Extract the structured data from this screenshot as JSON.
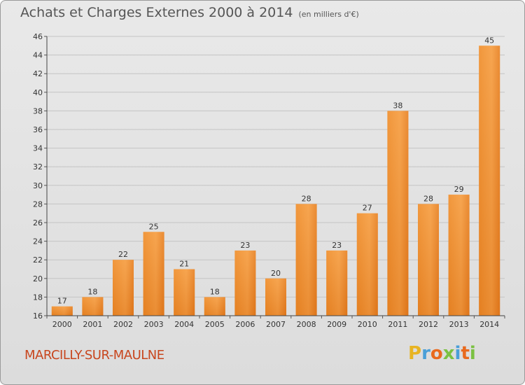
{
  "page": {
    "title": "Achats et Charges Externes 2000 à 2014",
    "unit_note": "(en milliers d'€)",
    "commune": "MARCILLY-SUR-MAULNE",
    "logo": {
      "letters": [
        "P",
        "r",
        "o",
        "x",
        "i",
        "t",
        "i"
      ],
      "colors": [
        "#e8b422",
        "#4a9fd8",
        "#e96a1e",
        "#7bc142",
        "#4a9fd8",
        "#e96a1e",
        "#7bc142"
      ]
    }
  },
  "chart_data": {
    "type": "bar",
    "title": "Achats et Charges Externes 2000 à 2014",
    "subtitle": "(en milliers d'€)",
    "xlabel": "",
    "ylabel": "",
    "categories": [
      "2000",
      "2001",
      "2002",
      "2003",
      "2004",
      "2005",
      "2006",
      "2007",
      "2008",
      "2009",
      "2010",
      "2011",
      "2012",
      "2013",
      "2014"
    ],
    "values": [
      17,
      18,
      22,
      25,
      21,
      18,
      23,
      20,
      28,
      23,
      27,
      38,
      28,
      29,
      45
    ],
    "ylim": [
      16,
      46
    ],
    "yticks": [
      16,
      18,
      20,
      22,
      24,
      26,
      28,
      30,
      32,
      34,
      36,
      38,
      40,
      42,
      44,
      46
    ],
    "grid": true,
    "bar_color": "#f08c2a",
    "legend": "none"
  }
}
